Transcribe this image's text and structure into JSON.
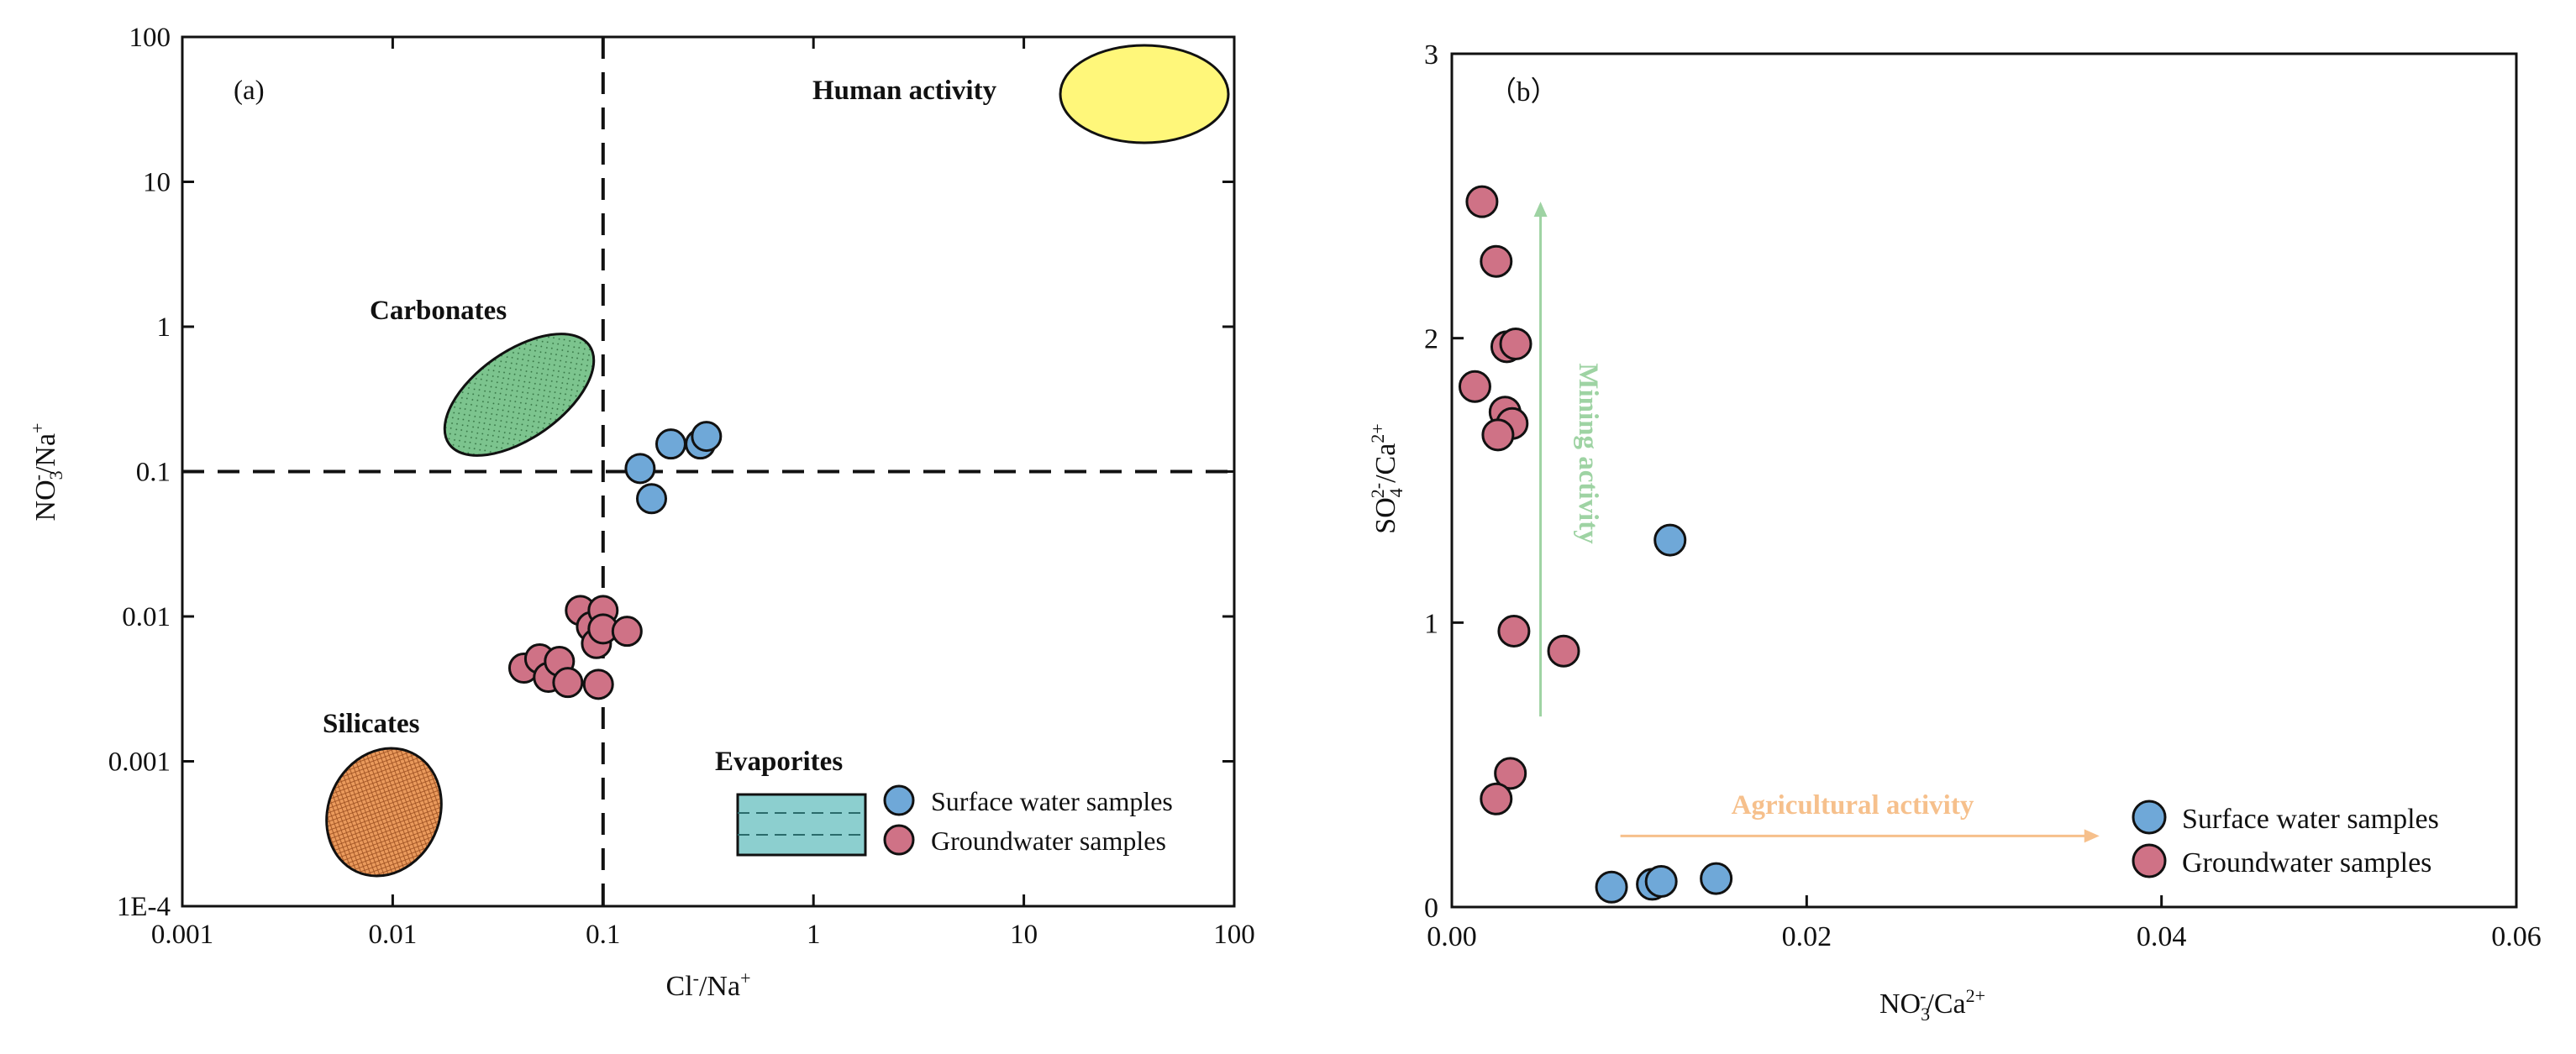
{
  "colors": {
    "surface_fill": "#6fa8d8",
    "ground_fill": "#cf7286",
    "human_fill": "#fff77a",
    "carbonate_fill": "#7cc48e",
    "silicate_fill": "#ea9a5c",
    "evaporite_fill": "#8ccfcf",
    "mining_arrow": "#9ed3a3",
    "agri_arrow": "#f6c08c"
  },
  "chart_data": [
    {
      "type": "scatter",
      "panel_label": "(a)",
      "xlabel_base": "Cl",
      "xlabel_sup1": "-",
      "xlabel_mid": "/Na",
      "xlabel_sup2": "+",
      "ylabel_base": "NO",
      "ylabel_sub": "3",
      "ylabel_sup1": "-",
      "ylabel_mid": "/Na",
      "ylabel_sup2": "+",
      "xscale": "log",
      "yscale": "log",
      "xlim": [
        0.001,
        100
      ],
      "ylim": [
        0.0001,
        100
      ],
      "xticks": [
        0.001,
        0.01,
        0.1,
        1,
        10,
        100
      ],
      "xtick_labels": [
        "0.001",
        "0.01",
        "0.1",
        "1",
        "10",
        "100"
      ],
      "yticks": [
        0.0001,
        0.001,
        0.01,
        0.1,
        1,
        10,
        100
      ],
      "ytick_labels": [
        "1E-4",
        "0.001",
        "0.01",
        "0.1",
        "1",
        "10",
        "100"
      ],
      "reference_lines": {
        "x": 0.1,
        "y": 0.1
      },
      "regions": [
        {
          "name": "Human activity",
          "center": [
            37,
            40
          ]
        },
        {
          "name": "Carbonates",
          "center": [
            0.043,
            0.28
          ]
        },
        {
          "name": "Silicates",
          "center": [
            0.0095,
            0.0003
          ]
        },
        {
          "name": "Evaporites",
          "center": [
            0.75,
            0.00035
          ]
        }
      ],
      "series": [
        {
          "name": "Surface water samples",
          "points": [
            [
              0.15,
              0.105
            ],
            [
              0.17,
              0.065
            ],
            [
              0.21,
              0.155
            ],
            [
              0.29,
              0.155
            ],
            [
              0.31,
              0.175
            ]
          ]
        },
        {
          "name": "Groundwater samples",
          "points": [
            [
              0.042,
              0.0044
            ],
            [
              0.05,
              0.0051
            ],
            [
              0.055,
              0.0038
            ],
            [
              0.062,
              0.0049
            ],
            [
              0.068,
              0.0035
            ],
            [
              0.078,
              0.011
            ],
            [
              0.088,
              0.0085
            ],
            [
              0.093,
              0.0065
            ],
            [
              0.095,
              0.0034
            ],
            [
              0.1,
              0.011
            ],
            [
              0.1,
              0.0082
            ],
            [
              0.13,
              0.0079
            ]
          ]
        }
      ],
      "legend": {
        "position": "bottom-right"
      }
    },
    {
      "type": "scatter",
      "panel_label": "（b）",
      "xlabel_base": "NO",
      "xlabel_sub": "3",
      "xlabel_sup1": "-",
      "xlabel_mid": "/Ca",
      "xlabel_sup2": "2+",
      "ylabel_base": "SO",
      "ylabel_sub": "4",
      "ylabel_sup1": "2-",
      "ylabel_mid": "/Ca",
      "ylabel_sup2": "2+",
      "xlim": [
        0,
        0.06
      ],
      "ylim": [
        0,
        3
      ],
      "xticks": [
        0,
        0.02,
        0.04,
        0.06
      ],
      "xtick_labels": [
        "0.00",
        "0.02",
        "0.04",
        "0.06"
      ],
      "yticks": [
        0,
        1,
        2,
        3
      ],
      "ytick_labels": [
        "0",
        "1",
        "2",
        "3"
      ],
      "annotations": [
        {
          "text": "Mining activity",
          "from": [
            0.005,
            0.67
          ],
          "to": [
            0.005,
            2.48
          ]
        },
        {
          "text": "Agricultural activity",
          "from": [
            0.0095,
            0.25
          ],
          "to": [
            0.0365,
            0.25
          ]
        }
      ],
      "series": [
        {
          "name": "Surface water samples",
          "points": [
            [
              0.009,
              0.07
            ],
            [
              0.0113,
              0.08
            ],
            [
              0.0118,
              0.09
            ],
            [
              0.0149,
              0.1
            ],
            [
              0.0123,
              1.29
            ]
          ]
        },
        {
          "name": "Groundwater samples",
          "points": [
            [
              0.0017,
              2.48
            ],
            [
              0.0025,
              2.27
            ],
            [
              0.0031,
              1.97
            ],
            [
              0.0036,
              1.98
            ],
            [
              0.0013,
              1.83
            ],
            [
              0.003,
              1.74
            ],
            [
              0.0034,
              1.7
            ],
            [
              0.0026,
              1.66
            ],
            [
              0.0035,
              0.97
            ],
            [
              0.0063,
              0.9
            ],
            [
              0.0033,
              0.47
            ],
            [
              0.0025,
              0.38
            ]
          ]
        }
      ],
      "legend": {
        "position": "bottom-right"
      }
    }
  ]
}
